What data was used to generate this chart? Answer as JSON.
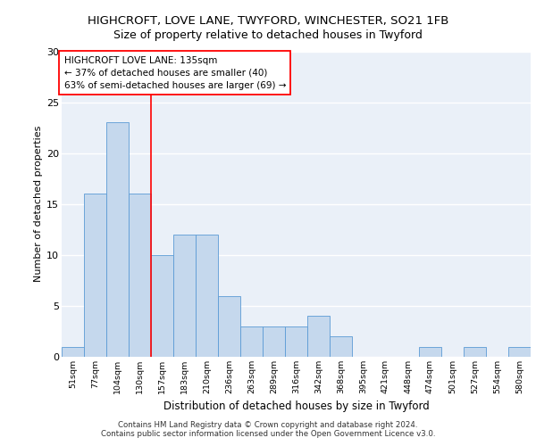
{
  "title1": "HIGHCROFT, LOVE LANE, TWYFORD, WINCHESTER, SO21 1FB",
  "title2": "Size of property relative to detached houses in Twyford",
  "xlabel": "Distribution of detached houses by size in Twyford",
  "ylabel": "Number of detached properties",
  "footnote1": "Contains HM Land Registry data © Crown copyright and database right 2024.",
  "footnote2": "Contains public sector information licensed under the Open Government Licence v3.0.",
  "annotation_line1": "HIGHCROFT LOVE LANE: 135sqm",
  "annotation_line2": "← 37% of detached houses are smaller (40)",
  "annotation_line3": "63% of semi-detached houses are larger (69) →",
  "bar_color": "#c5d8ed",
  "bar_edge_color": "#5b9bd5",
  "categories": [
    "51sqm",
    "77sqm",
    "104sqm",
    "130sqm",
    "157sqm",
    "183sqm",
    "210sqm",
    "236sqm",
    "263sqm",
    "289sqm",
    "316sqm",
    "342sqm",
    "368sqm",
    "395sqm",
    "421sqm",
    "448sqm",
    "474sqm",
    "501sqm",
    "527sqm",
    "554sqm",
    "580sqm"
  ],
  "values": [
    1,
    16,
    23,
    16,
    10,
    12,
    12,
    6,
    3,
    3,
    3,
    4,
    2,
    0,
    0,
    0,
    1,
    0,
    1,
    0,
    1
  ],
  "ylim": [
    0,
    30
  ],
  "yticks": [
    0,
    5,
    10,
    15,
    20,
    25,
    30
  ],
  "bg_color": "#eaf0f8",
  "grid_color": "#ffffff",
  "red_line_index": 3.5
}
